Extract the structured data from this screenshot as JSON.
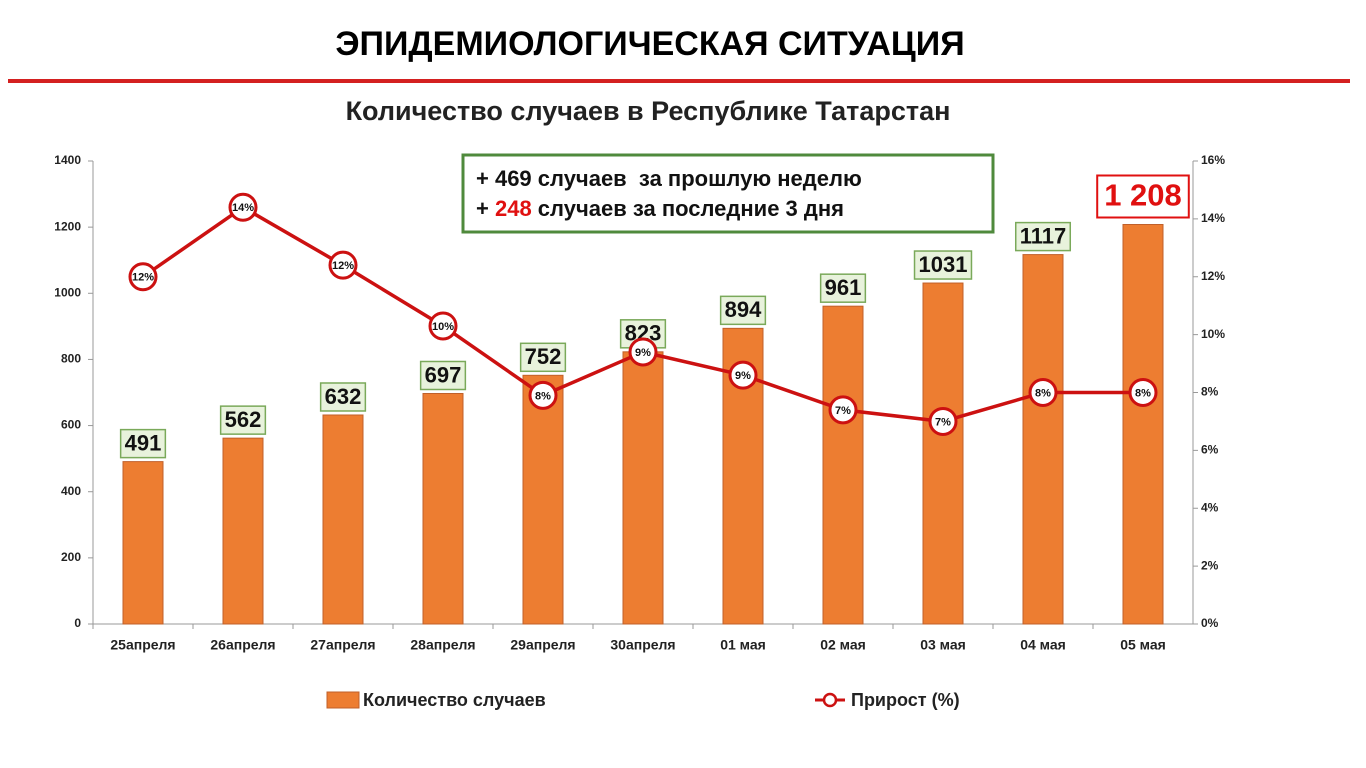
{
  "header": {
    "title": "ЭПИДЕМИОЛОГИЧЕСКАЯ СИТУАЦИЯ"
  },
  "chart_data": {
    "type": "bar",
    "title": "Количество случаев в Республике Татарстан",
    "annotation": {
      "line1": "+ 469 случаев  за прошлую неделю",
      "line2_prefix": "+ ",
      "line2_number": "248",
      "line2_suffix": " случаев за последние 3 дня"
    },
    "categories": [
      "25апреля",
      "26апреля",
      "27апреля",
      "28апреля",
      "29апреля",
      "30апреля",
      "01 мая",
      "02 мая",
      "03 мая",
      "04 мая",
      "05 мая"
    ],
    "series": [
      {
        "name": "Количество случаев",
        "color": "#ED7D31",
        "values": [
          491,
          562,
          632,
          697,
          752,
          823,
          894,
          961,
          1031,
          1117,
          1208
        ],
        "value_labels": [
          "491",
          "562",
          "632",
          "697",
          "752",
          "823",
          "894",
          "961",
          "1031",
          "1117",
          "1 208"
        ]
      },
      {
        "name": "Прирост (%)",
        "color": "#CC1111",
        "axis": "y2",
        "values": [
          12.0,
          14.4,
          12.4,
          10.3,
          7.9,
          9.4,
          8.6,
          7.4,
          7.0,
          8.0,
          8.0
        ],
        "value_labels": [
          "12%",
          "14%",
          "12%",
          "10%",
          "8%",
          "9%",
          "9%",
          "7%",
          "7%",
          "8%",
          "8%"
        ]
      }
    ],
    "ylim": [
      0,
      1400
    ],
    "yticks": [
      0,
      200,
      400,
      600,
      800,
      1000,
      1200,
      1400
    ],
    "y2lim": [
      0,
      16
    ],
    "y2ticks": [
      {
        "value": 0,
        "label": "0%"
      },
      {
        "value": 2,
        "label": "2%"
      },
      {
        "value": 4,
        "label": "4%"
      },
      {
        "value": 6,
        "label": "6%"
      },
      {
        "value": 8,
        "label": "8%"
      },
      {
        "value": 10,
        "label": "10%"
      },
      {
        "value": 12,
        "label": "12%"
      },
      {
        "value": 14,
        "label": "14%"
      },
      {
        "value": 16,
        "label": "16%"
      }
    ],
    "legend": "bottom"
  }
}
